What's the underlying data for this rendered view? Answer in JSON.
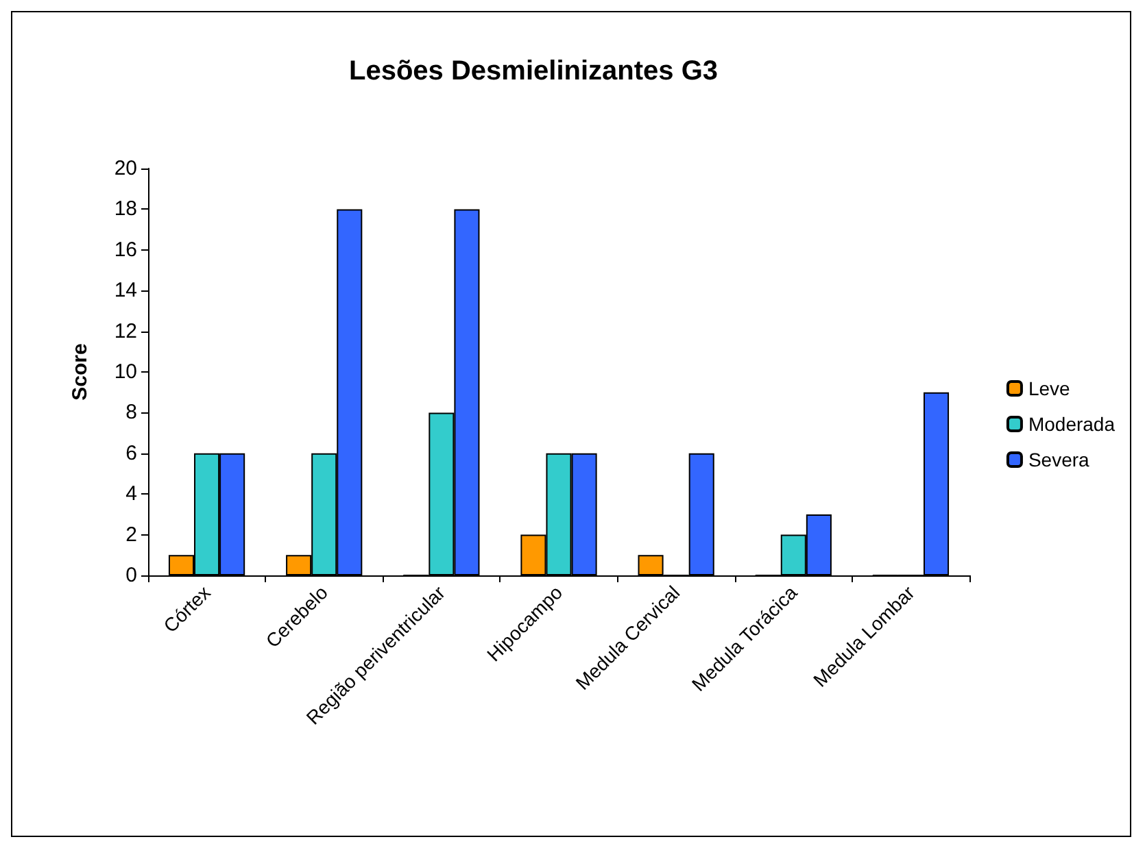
{
  "chart_data": {
    "type": "bar",
    "title": "Lesões Desmielinizantes G3",
    "ylabel": "Score",
    "categories": [
      "Córtex",
      "Cerebelo",
      "Região periventricular",
      "Hipocampo",
      "Medula Cervical",
      "Medula Torácica",
      "Medula Lombar"
    ],
    "series": [
      {
        "name": "Leve",
        "color": "#ff9900",
        "values": [
          1,
          1,
          0,
          2,
          1,
          0,
          0
        ]
      },
      {
        "name": "Moderada",
        "color": "#33cccc",
        "values": [
          6,
          6,
          8,
          6,
          0,
          2,
          0
        ]
      },
      {
        "name": "Severa",
        "color": "#3366ff",
        "values": [
          6,
          18,
          18,
          6,
          6,
          3,
          9
        ]
      }
    ],
    "ylim": [
      0,
      20
    ],
    "yticks": [
      0,
      2,
      4,
      6,
      8,
      10,
      12,
      14,
      16,
      18,
      20
    ],
    "grid": false,
    "legend": "right"
  }
}
